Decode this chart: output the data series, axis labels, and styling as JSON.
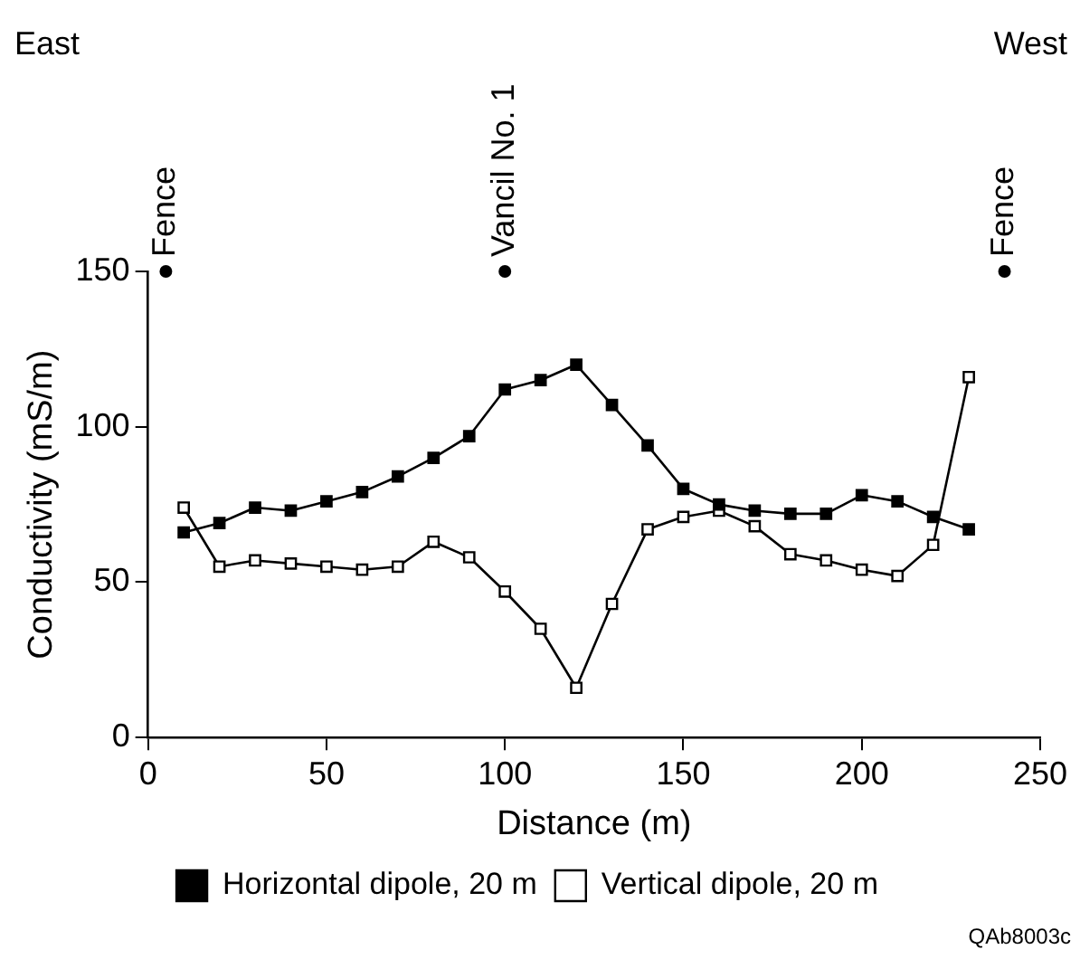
{
  "chart_data": {
    "type": "line",
    "xlabel": "Distance (m)",
    "ylabel": "Conductivity (mS/m)",
    "xlim": [
      0,
      250
    ],
    "xticks": [
      0,
      50,
      100,
      150,
      200,
      250
    ],
    "ylim": [
      0,
      150
    ],
    "yticks": [
      0,
      50,
      100,
      150
    ],
    "grid": false,
    "legend": "bottom",
    "marker": "square",
    "line_style": "solid",
    "series": [
      {
        "name": "Horizontal dipole, 20 m",
        "color": "#000000",
        "x": [
          10,
          20,
          30,
          40,
          50,
          60,
          70,
          80,
          90,
          100,
          110,
          120,
          130,
          140,
          150,
          160,
          170,
          180,
          190,
          200,
          210,
          220,
          230
        ],
        "values": [
          66,
          69,
          74,
          73,
          76,
          79,
          84,
          90,
          97,
          112,
          115,
          120,
          107,
          94,
          80,
          75,
          73,
          72,
          72,
          78,
          76,
          71,
          67
        ]
      },
      {
        "name": "Vertical dipole, 20 m",
        "color": "#000000",
        "x": [
          10,
          20,
          30,
          40,
          50,
          60,
          70,
          80,
          90,
          100,
          110,
          120,
          130,
          140,
          150,
          160,
          170,
          180,
          190,
          200,
          210,
          220,
          230
        ],
        "values": [
          74,
          55,
          57,
          56,
          55,
          54,
          55,
          63,
          58,
          47,
          35,
          16,
          43,
          67,
          71,
          73,
          68,
          59,
          57,
          54,
          52,
          62,
          116
        ]
      }
    ],
    "annotations": [
      "East",
      "West",
      {
        "text": "Fence",
        "x": 5,
        "y": 150
      },
      {
        "text": "Vancil No. 1",
        "x": 100,
        "y": 150
      },
      {
        "text": "Fence",
        "x": 240,
        "y": 150
      },
      "QAb8003c"
    ]
  }
}
